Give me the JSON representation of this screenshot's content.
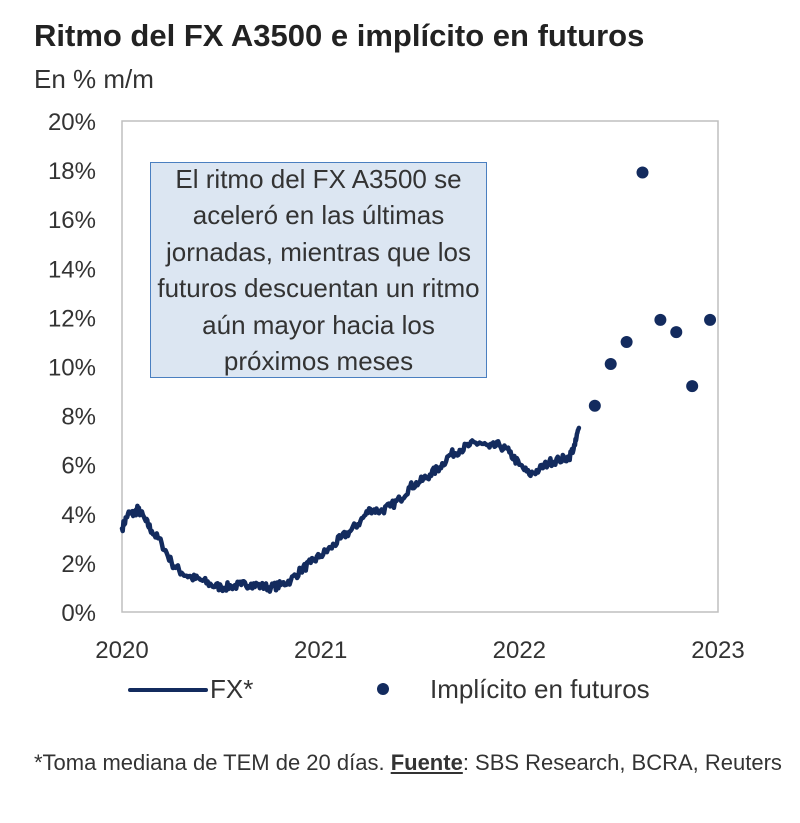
{
  "title": "Ritmo del FX A3500 e implícito en futuros",
  "subtitle": "En % m/m",
  "annotation": "El ritmo del FX A3500 se aceleró en las últimas jornadas, mientras que los futuros descuentan un ritmo aún mayor hacia los próximos meses",
  "legend": {
    "fx_label": "FX*",
    "futures_label": "Implícito en futuros"
  },
  "footnote": {
    "prefix": "*Toma mediana de TEM de 20 días. ",
    "source_label": "Fuente",
    "source_text": ": SBS Research, BCRA, Reuters"
  },
  "colors": {
    "series": "#132b5e",
    "annotation_fill": "#dce6f2",
    "annotation_border": "#4a7fc0",
    "plot_border": "#bfbfbf"
  },
  "chart_data": {
    "type": "line",
    "title": "Ritmo del FX A3500 e implícito en futuros",
    "ylabel": "En % m/m",
    "xlabel": "",
    "xlim": [
      2020.0,
      2023.0
    ],
    "ylim": [
      0,
      20
    ],
    "y_ticks": [
      0,
      2,
      4,
      6,
      8,
      10,
      12,
      14,
      16,
      18,
      20
    ],
    "y_tick_labels": [
      "0%",
      "2%",
      "4%",
      "6%",
      "8%",
      "10%",
      "12%",
      "14%",
      "16%",
      "18%",
      "20%"
    ],
    "x_ticks": [
      2020,
      2021,
      2022,
      2023
    ],
    "x_tick_labels": [
      "2020",
      "2021",
      "2022",
      "2023"
    ],
    "grid": false,
    "legend_position": "bottom",
    "series": [
      {
        "name": "FX*",
        "type": "line",
        "x": [
          2020.0,
          2020.03,
          2020.06,
          2020.08,
          2020.12,
          2020.15,
          2020.2,
          2020.25,
          2020.3,
          2020.35,
          2020.4,
          2020.45,
          2020.5,
          2020.55,
          2020.6,
          2020.65,
          2020.7,
          2020.75,
          2020.8,
          2020.85,
          2020.9,
          2020.95,
          2021.0,
          2021.05,
          2021.1,
          2021.15,
          2021.2,
          2021.25,
          2021.3,
          2021.35,
          2021.4,
          2021.45,
          2021.5,
          2021.55,
          2021.6,
          2021.65,
          2021.7,
          2021.75,
          2021.8,
          2021.85,
          2021.9,
          2021.95,
          2022.0,
          2022.05,
          2022.1,
          2022.15,
          2022.2,
          2022.25,
          2022.28,
          2022.3
        ],
        "values": [
          3.4,
          4.0,
          4.0,
          4.2,
          3.7,
          3.3,
          2.8,
          2.0,
          1.6,
          1.4,
          1.3,
          1.1,
          1.0,
          1.05,
          1.1,
          1.15,
          1.05,
          1.0,
          1.1,
          1.3,
          1.7,
          2.0,
          2.3,
          2.6,
          3.0,
          3.3,
          3.7,
          4.2,
          4.1,
          4.3,
          4.6,
          5.1,
          5.3,
          5.6,
          5.9,
          6.4,
          6.6,
          6.8,
          6.9,
          6.7,
          6.8,
          6.5,
          6.0,
          5.6,
          5.8,
          6.1,
          6.2,
          6.3,
          6.8,
          7.5
        ]
      },
      {
        "name": "Implícito en futuros",
        "type": "scatter",
        "x": [
          2022.38,
          2022.46,
          2022.54,
          2022.62,
          2022.71,
          2022.79,
          2022.87,
          2022.96
        ],
        "values": [
          8.4,
          10.1,
          11.0,
          17.9,
          11.9,
          11.4,
          9.2,
          11.9
        ]
      }
    ]
  }
}
